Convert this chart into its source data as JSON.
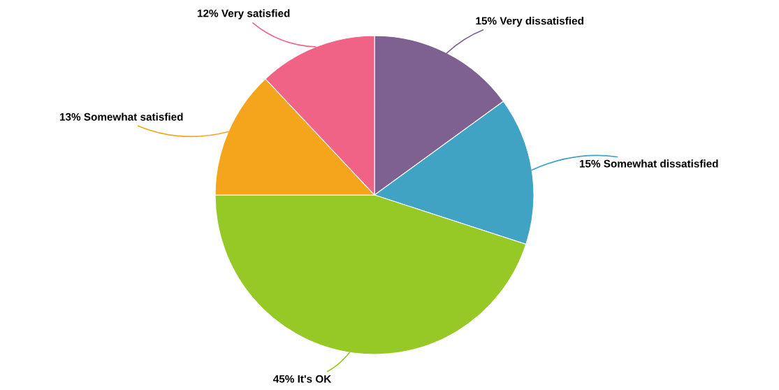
{
  "chart_data": {
    "type": "pie",
    "categories": [
      "Very dissatisfied",
      "Somewhat dissatisfied",
      "It's OK",
      "Somewhat satisfied",
      "Very satisfied"
    ],
    "values": [
      15,
      15,
      45,
      13,
      12
    ],
    "value_labels": [
      "15%",
      "15%",
      "45%",
      "13%",
      "12%"
    ],
    "colors": [
      "#7e6190",
      "#40a3c4",
      "#96c926",
      "#f5a51b",
      "#f06386"
    ]
  }
}
